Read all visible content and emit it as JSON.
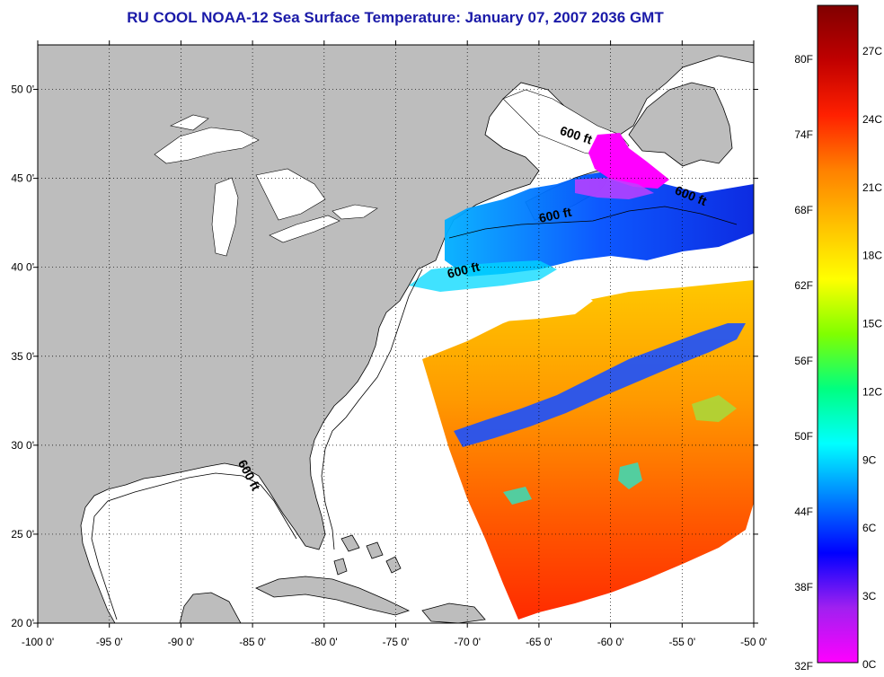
{
  "title": "RU COOL  NOAA-12  Sea Surface Temperature:  January 07, 2007 2036 GMT",
  "map": {
    "lon_range": [
      -100,
      -50
    ],
    "lat_range": [
      20,
      52.5
    ],
    "lon_ticks": [
      {
        "value": -100,
        "label": "-100 0'"
      },
      {
        "value": -95,
        "label": "-95 0'"
      },
      {
        "value": -90,
        "label": "-90 0'"
      },
      {
        "value": -85,
        "label": "-85 0'"
      },
      {
        "value": -80,
        "label": "-80 0'"
      },
      {
        "value": -75,
        "label": "-75 0'"
      },
      {
        "value": -70,
        "label": "-70 0'"
      },
      {
        "value": -65,
        "label": "-65 0'"
      },
      {
        "value": -60,
        "label": "-60 0'"
      },
      {
        "value": -55,
        "label": "-55 0'"
      },
      {
        "value": -50,
        "label": "-50 0'"
      }
    ],
    "lat_ticks": [
      {
        "value": 20,
        "label": "20 0'"
      },
      {
        "value": 25,
        "label": "25 0'"
      },
      {
        "value": 30,
        "label": "30 0'"
      },
      {
        "value": 35,
        "label": "35 0'"
      },
      {
        "value": 40,
        "label": "40 0'"
      },
      {
        "value": 45,
        "label": "45 0'"
      },
      {
        "value": 50,
        "label": "50 0'"
      }
    ],
    "grid": "dotted",
    "land_color": "#bdbdbd",
    "contour_label": "600 ft",
    "contour_labels": [
      {
        "text": "600 ft",
        "lon": -62.5,
        "lat": 47.2,
        "angle": 18
      },
      {
        "text": "600 ft",
        "lon": -54.5,
        "lat": 43.8,
        "angle": 22
      },
      {
        "text": "600 ft",
        "lon": -63.8,
        "lat": 42.7,
        "angle": -12
      },
      {
        "text": "600 ft",
        "lon": -70.2,
        "lat": 39.6,
        "angle": -14
      },
      {
        "text": "600 ft",
        "lon": -85.5,
        "lat": 28.2,
        "angle": 62
      }
    ]
  },
  "colorbar": {
    "f_labels": [
      "80F",
      "74F",
      "68F",
      "62F",
      "56F",
      "50F",
      "44F",
      "38F",
      "32F"
    ],
    "c_labels": [
      "27C",
      "24C",
      "21C",
      "18C",
      "15C",
      "12C",
      "9C",
      "6C",
      "3C",
      "0C"
    ],
    "colors": [
      "#ff00ff",
      "#a020f0",
      "#0000ff",
      "#0080ff",
      "#00ffff",
      "#00ff80",
      "#80ff00",
      "#ffff00",
      "#ffc000",
      "#ff8000",
      "#ff2000",
      "#c00000",
      "#800000"
    ]
  }
}
